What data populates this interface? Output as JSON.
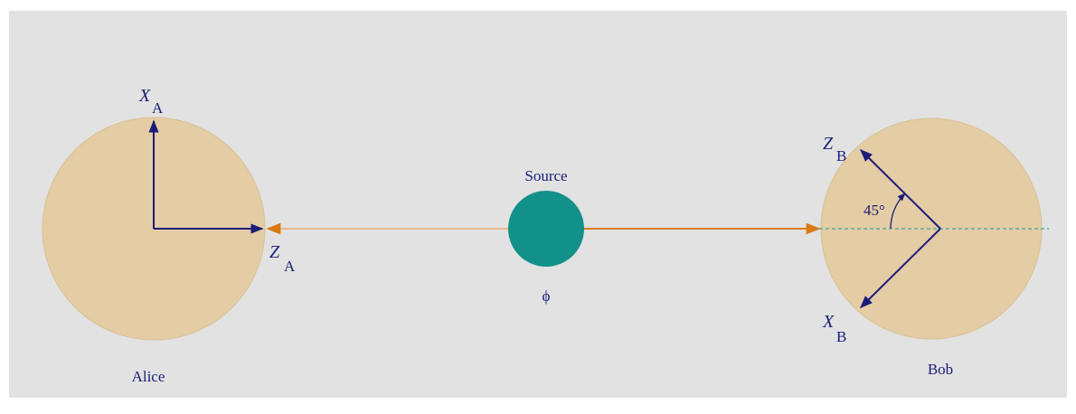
{
  "alice": {
    "label": "Alice",
    "x_axis": {
      "symbol": "X",
      "subscript": "A"
    },
    "z_axis": {
      "symbol": "Z",
      "subscript": "A"
    }
  },
  "source": {
    "label": "Source",
    "state": "ϕ"
  },
  "bob": {
    "label": "Bob",
    "x_axis": {
      "symbol": "X",
      "subscript": "B"
    },
    "z_axis": {
      "symbol": "Z",
      "subscript": "B"
    },
    "angle_label": "45°"
  }
}
